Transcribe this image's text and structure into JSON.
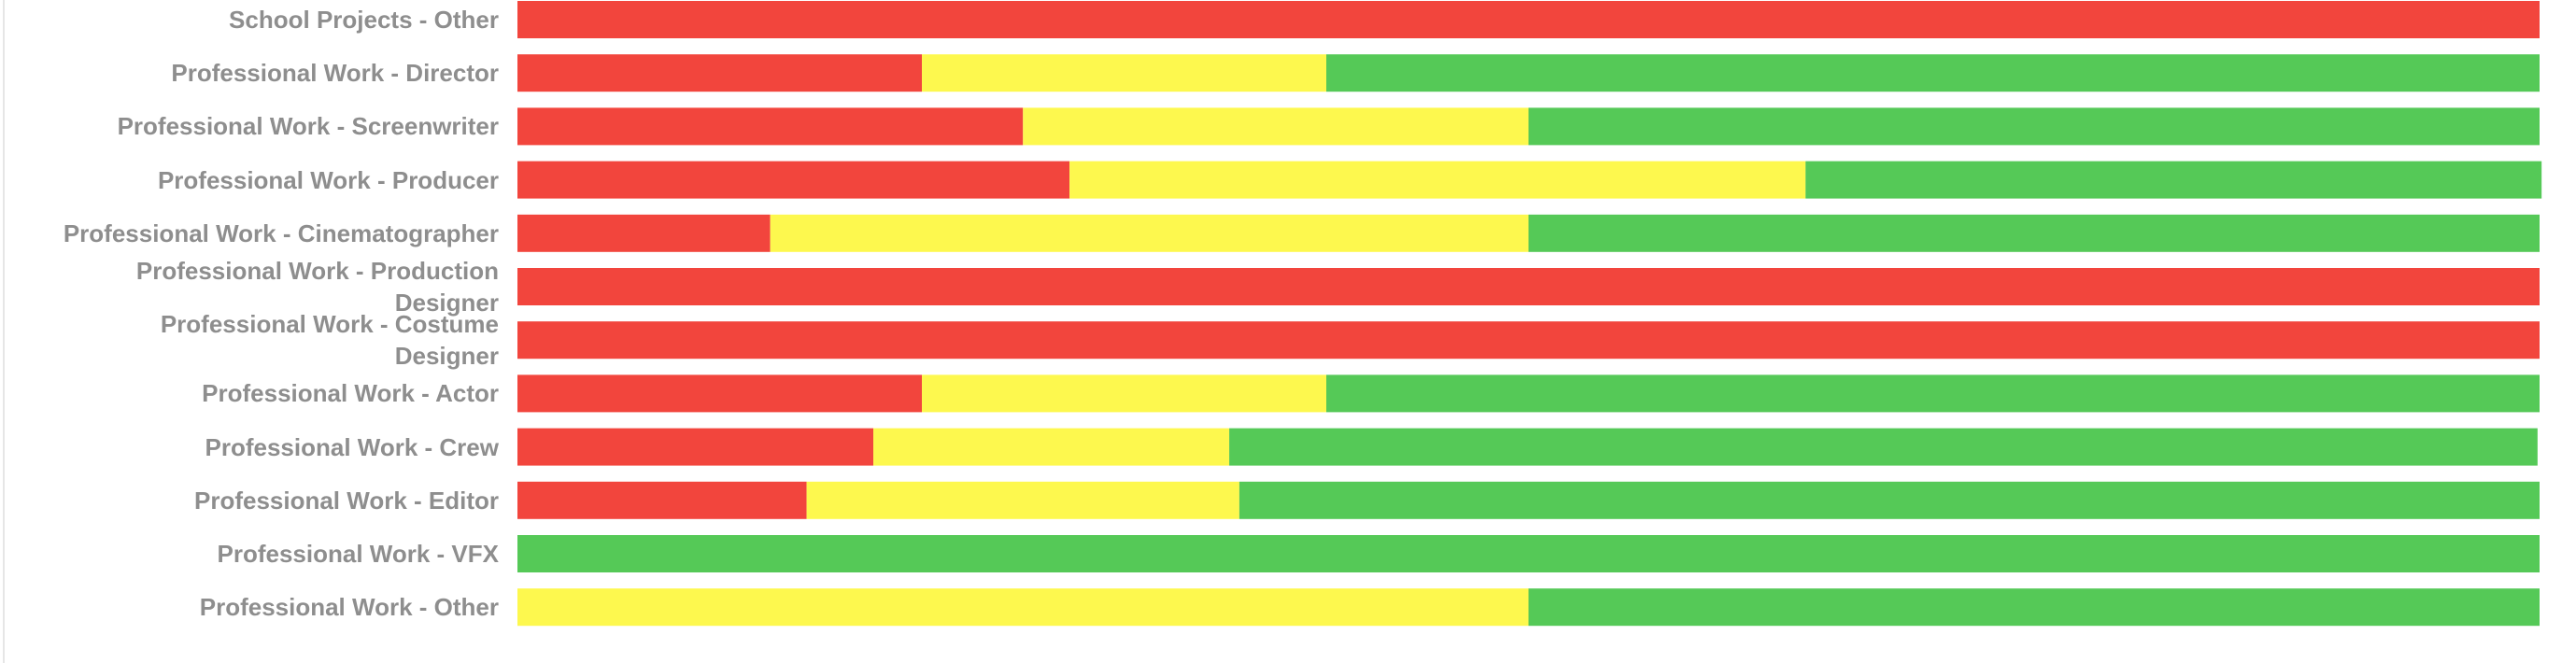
{
  "chart_data": {
    "type": "stacked-bar-horizontal",
    "categories": [
      "School Projects - Other",
      "Professional Work - Director",
      "Professional Work - Screenwriter",
      "Professional Work - Producer",
      "Professional Work - Cinematographer",
      "Professional Work - Production Designer",
      "Professional Work - Costume Designer",
      "Professional Work - Actor",
      "Professional Work - Crew",
      "Professional Work - Editor",
      "Professional Work - VFX",
      "Professional Work - Other"
    ],
    "series": [
      {
        "color": "#f2453d",
        "values": [
          100,
          20,
          25,
          27.3,
          12.5,
          100,
          100,
          20,
          17.6,
          14.3,
          0,
          0
        ]
      },
      {
        "color": "#fdf84e",
        "values": [
          0,
          20,
          25,
          36.4,
          37.5,
          0,
          0,
          20,
          17.6,
          21.4,
          0,
          50
        ]
      },
      {
        "color": "#55c957",
        "values": [
          0,
          60,
          50,
          36.4,
          50,
          0,
          0,
          60,
          64.7,
          64.3,
          100,
          50
        ]
      }
    ],
    "xlim": [
      0,
      100
    ]
  }
}
